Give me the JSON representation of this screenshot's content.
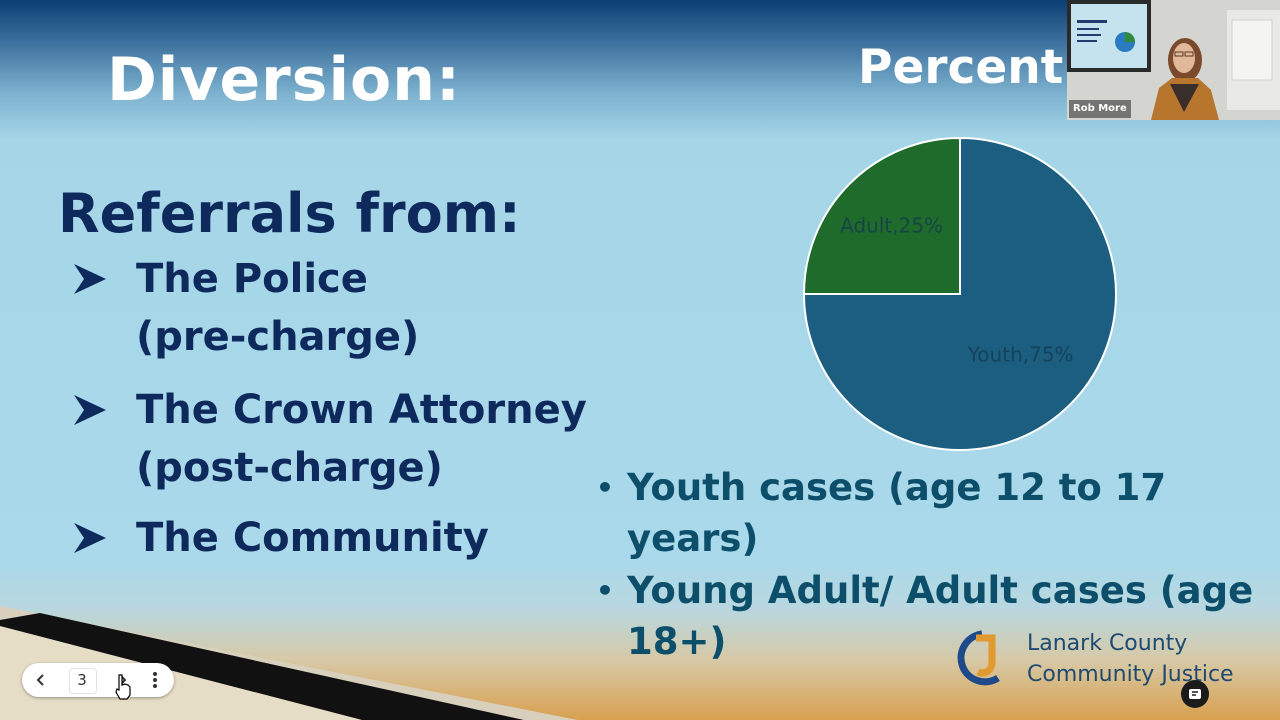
{
  "slide": {
    "title": "Diversion:",
    "heading": "Referrals from:",
    "referrals": [
      {
        "line1": "The Police",
        "line2": "(pre-charge)"
      },
      {
        "line1": "The Crown Attorney",
        "line2": "(post-charge)"
      },
      {
        "line1": "The Community"
      }
    ],
    "bullets": [
      "Youth cases (age 12 to 17 years)",
      "Young Adult/ Adult cases (age 18+)"
    ],
    "logo": {
      "line1": "Lanark County",
      "line2": "Community Justice"
    }
  },
  "chart_data": {
    "type": "pie",
    "title": "Percent",
    "slices": [
      {
        "label": "Youth,75%",
        "category": "Youth",
        "value": 75,
        "color": "#1b5e80"
      },
      {
        "label": "Adult,25%",
        "category": "Adult",
        "value": 25,
        "color": "#1f6b2b"
      }
    ]
  },
  "controls": {
    "prev_icon": "chevron-left-icon",
    "page_number": "3",
    "next_icon": "chevron-right-icon",
    "more_icon": "more-vertical-icon"
  },
  "video": {
    "participant_name": "Rob More"
  },
  "colors": {
    "heading": "#0e2a5c",
    "bullets": "#0d4f6a",
    "title": "#ffffff"
  }
}
